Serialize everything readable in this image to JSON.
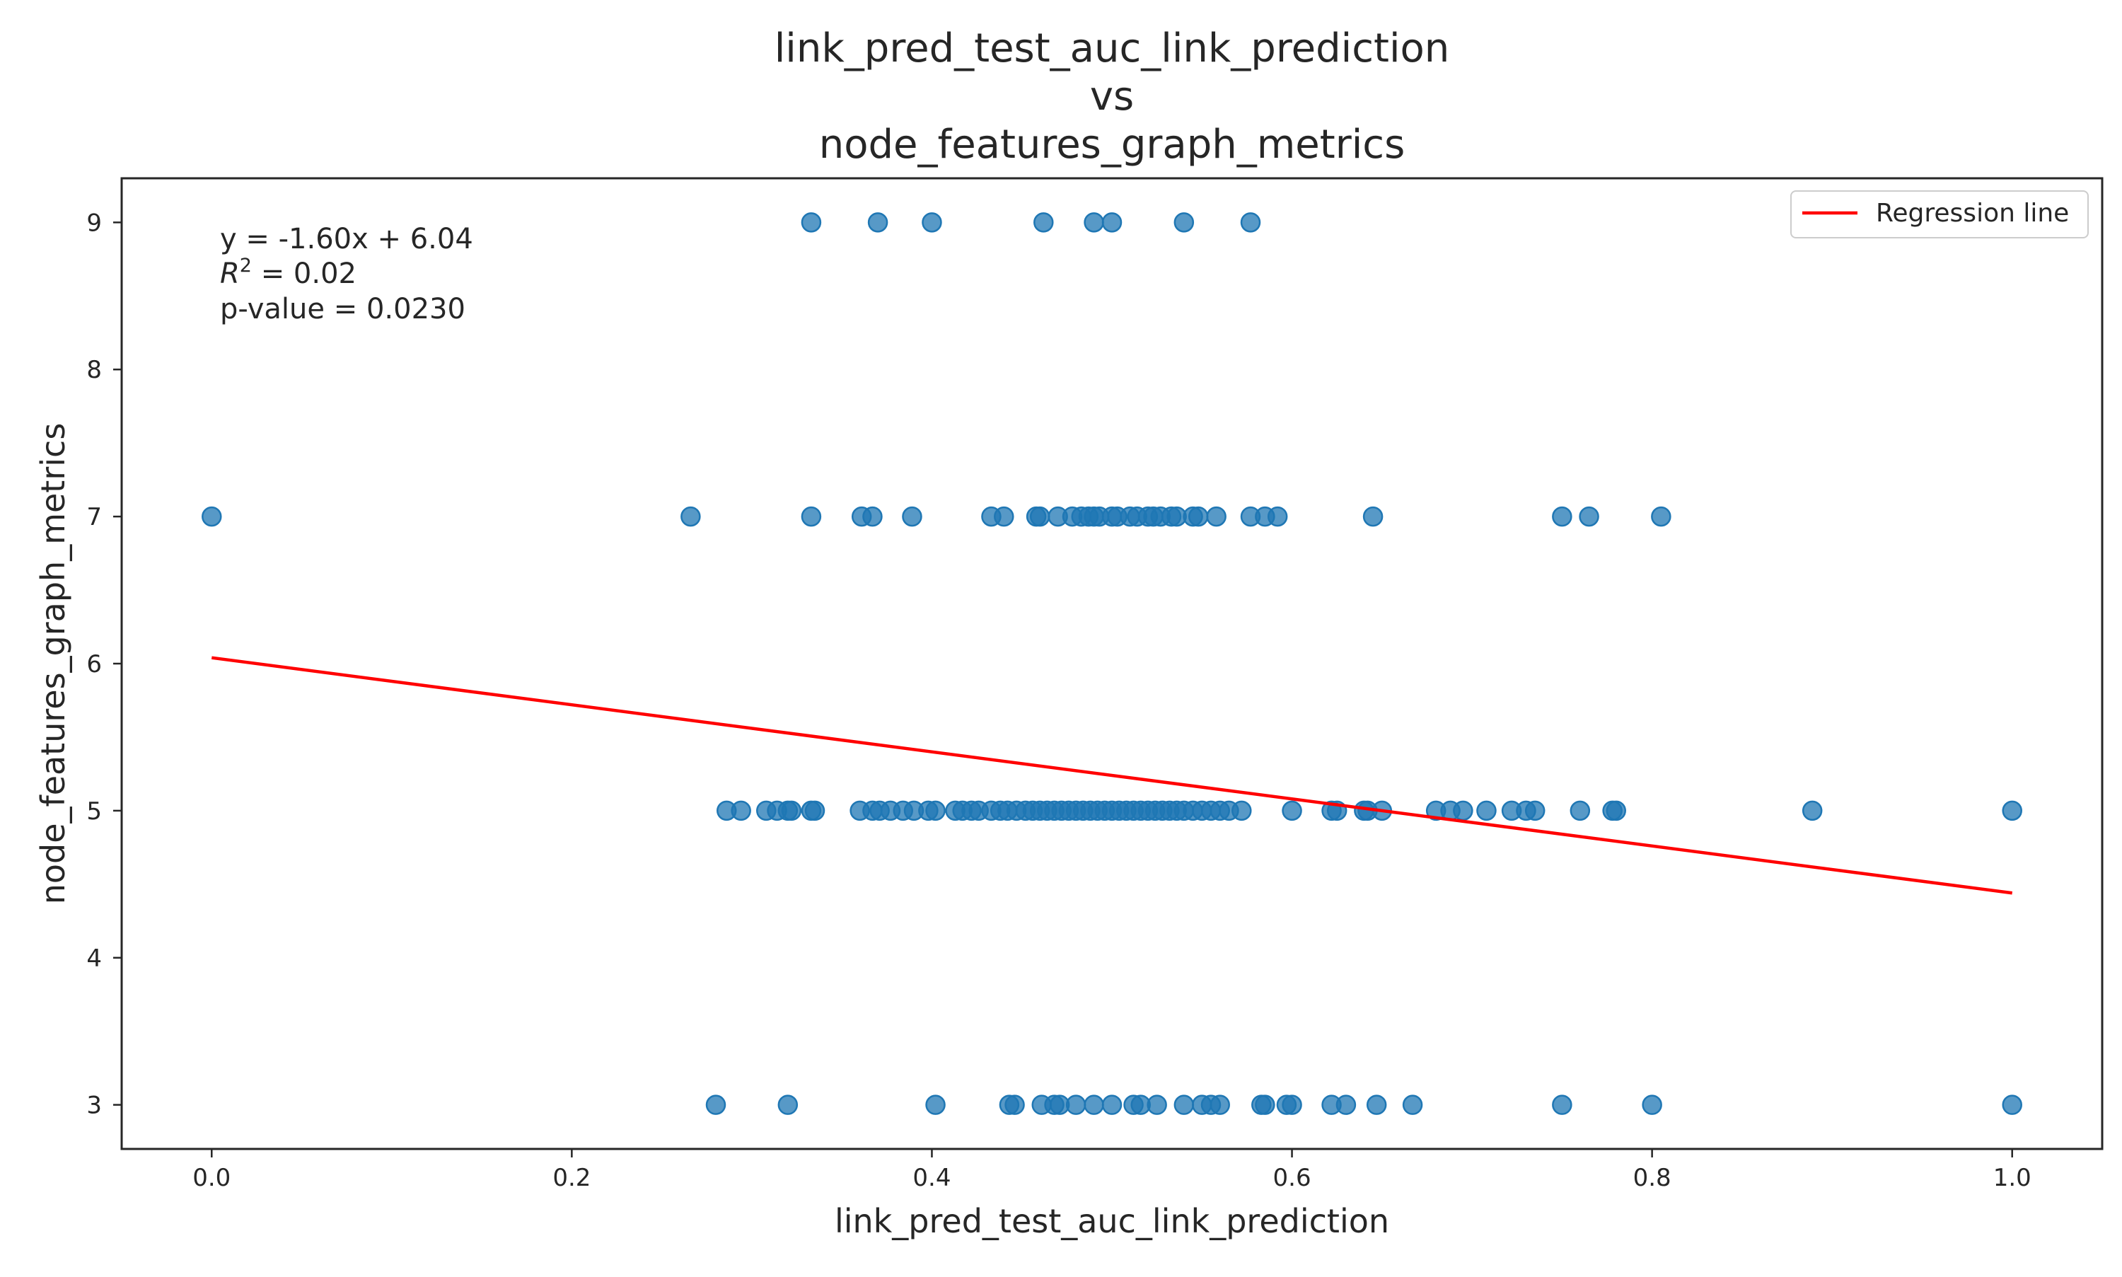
{
  "chart_data": {
    "type": "scatter",
    "title_lines": [
      "link_pred_test_auc_link_prediction",
      "vs",
      "node_features_graph_metrics"
    ],
    "xlabel": "link_pred_test_auc_link_prediction",
    "ylabel": "node_features_graph_metrics",
    "xlim": [
      -0.05,
      1.05
    ],
    "ylim": [
      2.7,
      9.3
    ],
    "x_ticks": [
      "0.0",
      "0.2",
      "0.4",
      "0.6",
      "0.8",
      "1.0"
    ],
    "y_ticks": [
      "3",
      "4",
      "5",
      "6",
      "7",
      "8",
      "9"
    ],
    "grid": false,
    "point_color": "#1f77b4",
    "regression": {
      "slope": -1.6,
      "intercept": 6.04,
      "color": "#ff0000",
      "x_range": [
        0.0,
        1.0
      ]
    },
    "annotation": {
      "line1": "y = -1.60x + 6.04",
      "r2_symbol": "R",
      "r2_sup": "2",
      "r2_rest": " = 0.02",
      "line3": "p-value = 0.0230"
    },
    "legend": {
      "label": "Regression line",
      "position": "top-right"
    },
    "points": [
      {
        "x": 0.333,
        "y": 9
      },
      {
        "x": 0.37,
        "y": 9
      },
      {
        "x": 0.4,
        "y": 9
      },
      {
        "x": 0.462,
        "y": 9
      },
      {
        "x": 0.49,
        "y": 9
      },
      {
        "x": 0.5,
        "y": 9
      },
      {
        "x": 0.54,
        "y": 9
      },
      {
        "x": 0.577,
        "y": 9
      },
      {
        "x": 0.0,
        "y": 7
      },
      {
        "x": 0.266,
        "y": 7
      },
      {
        "x": 0.333,
        "y": 7
      },
      {
        "x": 0.361,
        "y": 7
      },
      {
        "x": 0.367,
        "y": 7
      },
      {
        "x": 0.389,
        "y": 7
      },
      {
        "x": 0.433,
        "y": 7
      },
      {
        "x": 0.44,
        "y": 7
      },
      {
        "x": 0.458,
        "y": 7
      },
      {
        "x": 0.46,
        "y": 7
      },
      {
        "x": 0.47,
        "y": 7
      },
      {
        "x": 0.478,
        "y": 7
      },
      {
        "x": 0.483,
        "y": 7
      },
      {
        "x": 0.487,
        "y": 7
      },
      {
        "x": 0.49,
        "y": 7
      },
      {
        "x": 0.493,
        "y": 7
      },
      {
        "x": 0.5,
        "y": 7
      },
      {
        "x": 0.503,
        "y": 7
      },
      {
        "x": 0.51,
        "y": 7
      },
      {
        "x": 0.514,
        "y": 7
      },
      {
        "x": 0.52,
        "y": 7
      },
      {
        "x": 0.523,
        "y": 7
      },
      {
        "x": 0.527,
        "y": 7
      },
      {
        "x": 0.533,
        "y": 7
      },
      {
        "x": 0.536,
        "y": 7
      },
      {
        "x": 0.545,
        "y": 7
      },
      {
        "x": 0.548,
        "y": 7
      },
      {
        "x": 0.558,
        "y": 7
      },
      {
        "x": 0.577,
        "y": 7
      },
      {
        "x": 0.585,
        "y": 7
      },
      {
        "x": 0.592,
        "y": 7
      },
      {
        "x": 0.645,
        "y": 7
      },
      {
        "x": 0.75,
        "y": 7
      },
      {
        "x": 0.765,
        "y": 7
      },
      {
        "x": 0.805,
        "y": 7
      },
      {
        "x": 0.286,
        "y": 5
      },
      {
        "x": 0.294,
        "y": 5
      },
      {
        "x": 0.308,
        "y": 5
      },
      {
        "x": 0.314,
        "y": 5
      },
      {
        "x": 0.32,
        "y": 5
      },
      {
        "x": 0.322,
        "y": 5
      },
      {
        "x": 0.333,
        "y": 5
      },
      {
        "x": 0.335,
        "y": 5
      },
      {
        "x": 0.36,
        "y": 5
      },
      {
        "x": 0.367,
        "y": 5
      },
      {
        "x": 0.371,
        "y": 5
      },
      {
        "x": 0.377,
        "y": 5
      },
      {
        "x": 0.384,
        "y": 5
      },
      {
        "x": 0.39,
        "y": 5
      },
      {
        "x": 0.398,
        "y": 5
      },
      {
        "x": 0.402,
        "y": 5
      },
      {
        "x": 0.413,
        "y": 5
      },
      {
        "x": 0.417,
        "y": 5
      },
      {
        "x": 0.422,
        "y": 5
      },
      {
        "x": 0.426,
        "y": 5
      },
      {
        "x": 0.433,
        "y": 5
      },
      {
        "x": 0.438,
        "y": 5
      },
      {
        "x": 0.442,
        "y": 5
      },
      {
        "x": 0.447,
        "y": 5
      },
      {
        "x": 0.452,
        "y": 5
      },
      {
        "x": 0.456,
        "y": 5
      },
      {
        "x": 0.46,
        "y": 5
      },
      {
        "x": 0.464,
        "y": 5
      },
      {
        "x": 0.468,
        "y": 5
      },
      {
        "x": 0.472,
        "y": 5
      },
      {
        "x": 0.476,
        "y": 5
      },
      {
        "x": 0.48,
        "y": 5
      },
      {
        "x": 0.484,
        "y": 5
      },
      {
        "x": 0.488,
        "y": 5
      },
      {
        "x": 0.492,
        "y": 5
      },
      {
        "x": 0.496,
        "y": 5
      },
      {
        "x": 0.5,
        "y": 5
      },
      {
        "x": 0.504,
        "y": 5
      },
      {
        "x": 0.508,
        "y": 5
      },
      {
        "x": 0.512,
        "y": 5
      },
      {
        "x": 0.516,
        "y": 5
      },
      {
        "x": 0.52,
        "y": 5
      },
      {
        "x": 0.524,
        "y": 5
      },
      {
        "x": 0.528,
        "y": 5
      },
      {
        "x": 0.532,
        "y": 5
      },
      {
        "x": 0.536,
        "y": 5
      },
      {
        "x": 0.54,
        "y": 5
      },
      {
        "x": 0.545,
        "y": 5
      },
      {
        "x": 0.55,
        "y": 5
      },
      {
        "x": 0.555,
        "y": 5
      },
      {
        "x": 0.56,
        "y": 5
      },
      {
        "x": 0.565,
        "y": 5
      },
      {
        "x": 0.572,
        "y": 5
      },
      {
        "x": 0.6,
        "y": 5
      },
      {
        "x": 0.622,
        "y": 5
      },
      {
        "x": 0.625,
        "y": 5
      },
      {
        "x": 0.64,
        "y": 5
      },
      {
        "x": 0.642,
        "y": 5
      },
      {
        "x": 0.65,
        "y": 5
      },
      {
        "x": 0.68,
        "y": 5
      },
      {
        "x": 0.688,
        "y": 5
      },
      {
        "x": 0.695,
        "y": 5
      },
      {
        "x": 0.708,
        "y": 5
      },
      {
        "x": 0.722,
        "y": 5
      },
      {
        "x": 0.73,
        "y": 5
      },
      {
        "x": 0.735,
        "y": 5
      },
      {
        "x": 0.76,
        "y": 5
      },
      {
        "x": 0.778,
        "y": 5
      },
      {
        "x": 0.78,
        "y": 5
      },
      {
        "x": 0.889,
        "y": 5
      },
      {
        "x": 1.0,
        "y": 5
      },
      {
        "x": 0.28,
        "y": 3
      },
      {
        "x": 0.32,
        "y": 3
      },
      {
        "x": 0.402,
        "y": 3
      },
      {
        "x": 0.443,
        "y": 3
      },
      {
        "x": 0.446,
        "y": 3
      },
      {
        "x": 0.461,
        "y": 3
      },
      {
        "x": 0.468,
        "y": 3
      },
      {
        "x": 0.471,
        "y": 3
      },
      {
        "x": 0.48,
        "y": 3
      },
      {
        "x": 0.49,
        "y": 3
      },
      {
        "x": 0.5,
        "y": 3
      },
      {
        "x": 0.512,
        "y": 3
      },
      {
        "x": 0.516,
        "y": 3
      },
      {
        "x": 0.525,
        "y": 3
      },
      {
        "x": 0.54,
        "y": 3
      },
      {
        "x": 0.55,
        "y": 3
      },
      {
        "x": 0.555,
        "y": 3
      },
      {
        "x": 0.56,
        "y": 3
      },
      {
        "x": 0.583,
        "y": 3
      },
      {
        "x": 0.585,
        "y": 3
      },
      {
        "x": 0.597,
        "y": 3
      },
      {
        "x": 0.6,
        "y": 3
      },
      {
        "x": 0.622,
        "y": 3
      },
      {
        "x": 0.63,
        "y": 3
      },
      {
        "x": 0.647,
        "y": 3
      },
      {
        "x": 0.667,
        "y": 3
      },
      {
        "x": 0.75,
        "y": 3
      },
      {
        "x": 0.8,
        "y": 3
      },
      {
        "x": 1.0,
        "y": 3
      }
    ]
  }
}
